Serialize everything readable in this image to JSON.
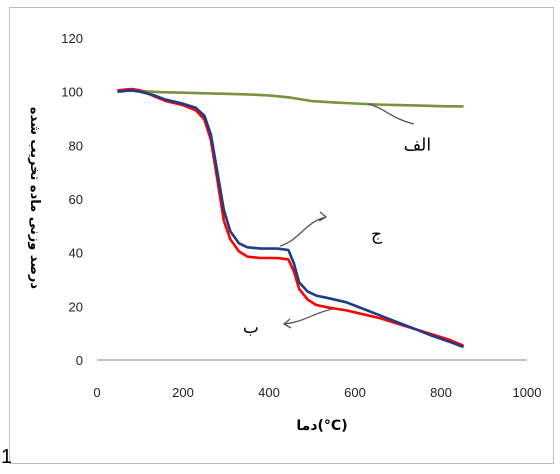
{
  "chart_data": {
    "type": "line",
    "xlabel": "دما(°C)",
    "ylabel": "درصد وزنی ماده تخریب شده",
    "xlim": [
      0,
      1000
    ],
    "ylim": [
      0,
      120
    ],
    "xticks": [
      "0",
      "200",
      "400",
      "600",
      "800",
      "1000"
    ],
    "yticks": [
      "0",
      "20",
      "40",
      "60",
      "80",
      "100",
      "120"
    ],
    "grid": false,
    "series": [
      {
        "name": "الف",
        "color": "#77933c",
        "x": [
          50,
          100,
          150,
          200,
          250,
          300,
          350,
          400,
          450,
          500,
          550,
          600,
          650,
          700,
          750,
          800,
          850
        ],
        "y": [
          100.5,
          100.2,
          99.8,
          99.6,
          99.4,
          99.2,
          99.0,
          98.6,
          97.8,
          96.5,
          96.0,
          95.6,
          95.2,
          95.0,
          94.8,
          94.6,
          94.5
        ]
      },
      {
        "name": "ب",
        "color": "#ff0000",
        "x": [
          50,
          80,
          100,
          130,
          160,
          200,
          230,
          250,
          265,
          280,
          295,
          310,
          330,
          350,
          380,
          420,
          445,
          458,
          470,
          490,
          510,
          540,
          580,
          620,
          660,
          700,
          740,
          780,
          820,
          850
        ],
        "y": [
          100.5,
          101.0,
          100.5,
          98.5,
          96.5,
          95.0,
          93.0,
          89.5,
          82.0,
          67.0,
          52.0,
          45.0,
          40.5,
          38.5,
          38.0,
          38.0,
          37.5,
          33.0,
          26.5,
          22.5,
          20.5,
          19.5,
          18.5,
          17.0,
          15.5,
          13.5,
          11.5,
          9.5,
          7.5,
          5.5
        ]
      },
      {
        "name": "ج",
        "color": "#1f3c88",
        "x": [
          50,
          80,
          100,
          130,
          160,
          200,
          230,
          250,
          265,
          280,
          295,
          310,
          330,
          350,
          380,
          420,
          445,
          458,
          470,
          490,
          510,
          540,
          580,
          620,
          660,
          700,
          740,
          780,
          820,
          850
        ],
        "y": [
          100.0,
          100.5,
          100.0,
          98.8,
          97.0,
          95.5,
          94.0,
          91.0,
          84.0,
          70.0,
          56.0,
          48.0,
          43.5,
          42.0,
          41.5,
          41.5,
          41.0,
          36.0,
          29.0,
          25.5,
          24.0,
          23.0,
          21.5,
          19.0,
          16.5,
          14.0,
          11.5,
          9.0,
          6.8,
          5.0
        ]
      }
    ],
    "annotations": [
      {
        "text": "الف",
        "x": 745,
        "y": 78
      },
      {
        "text": "ج",
        "x": 650,
        "y": 45
      },
      {
        "text": "ب",
        "x": 358,
        "y": 10
      }
    ]
  },
  "stray_mark": "1"
}
